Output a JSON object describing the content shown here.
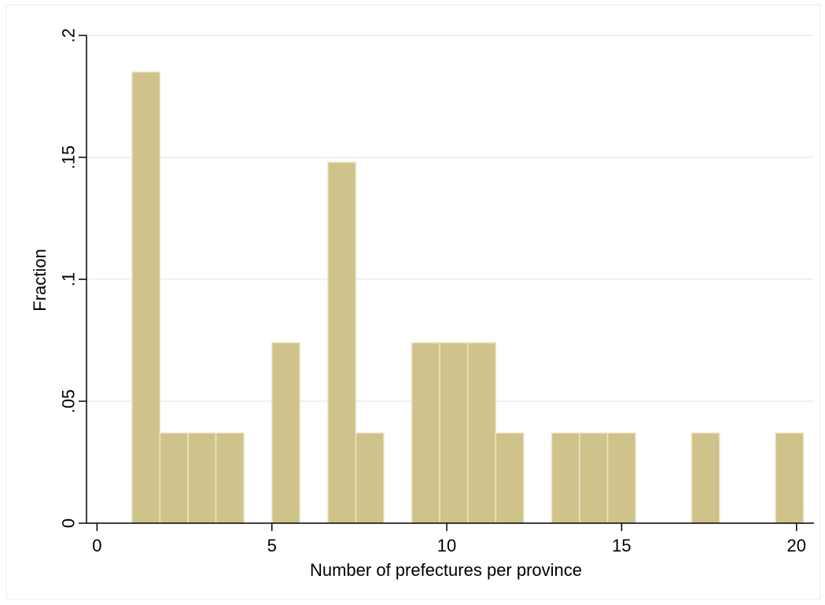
{
  "chart_data": {
    "type": "bar",
    "title": "",
    "xlabel": "Number of prefectures per province",
    "ylabel": "Fraction",
    "xlim": [
      -0.3,
      20.5
    ],
    "ylim": [
      0,
      0.2
    ],
    "x_ticks": [
      0,
      5,
      10,
      15,
      20
    ],
    "x_tick_labels": [
      "0",
      "5",
      "10",
      "15",
      "20"
    ],
    "y_ticks": [
      0,
      0.05,
      0.1,
      0.15,
      0.2
    ],
    "y_tick_labels": [
      "0",
      ".05",
      ".1",
      ".15",
      ".2"
    ],
    "grid": true,
    "bar_color": "#cfc28a",
    "bar_edge_color": "#ede6c8",
    "bins": [
      {
        "start": 1.0,
        "end": 1.8,
        "value": 0.185
      },
      {
        "start": 1.8,
        "end": 2.6,
        "value": 0.037
      },
      {
        "start": 2.6,
        "end": 3.4,
        "value": 0.037
      },
      {
        "start": 3.4,
        "end": 4.2,
        "value": 0.037
      },
      {
        "start": 5.0,
        "end": 5.8,
        "value": 0.074
      },
      {
        "start": 6.6,
        "end": 7.4,
        "value": 0.148
      },
      {
        "start": 7.4,
        "end": 8.2,
        "value": 0.037
      },
      {
        "start": 9.0,
        "end": 9.8,
        "value": 0.074
      },
      {
        "start": 9.8,
        "end": 10.6,
        "value": 0.074
      },
      {
        "start": 10.6,
        "end": 11.4,
        "value": 0.074
      },
      {
        "start": 11.4,
        "end": 12.2,
        "value": 0.037
      },
      {
        "start": 13.0,
        "end": 13.8,
        "value": 0.037
      },
      {
        "start": 13.8,
        "end": 14.6,
        "value": 0.037
      },
      {
        "start": 14.6,
        "end": 15.4,
        "value": 0.037
      },
      {
        "start": 17.0,
        "end": 17.8,
        "value": 0.037
      },
      {
        "start": 19.4,
        "end": 20.2,
        "value": 0.037
      }
    ]
  }
}
